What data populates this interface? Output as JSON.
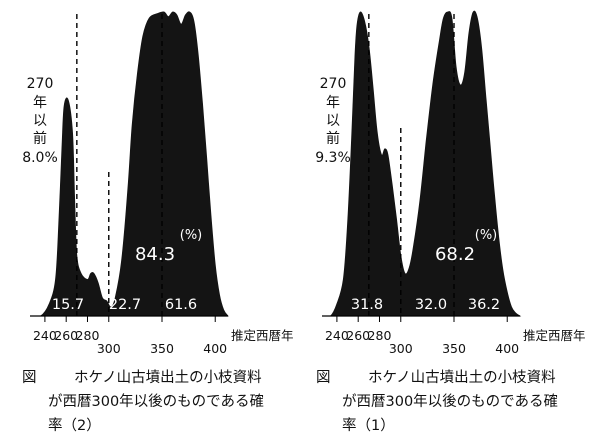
{
  "chart_data": [
    {
      "type": "area",
      "xlabel": "推定西暦年",
      "x_ticks": [
        240,
        260,
        280,
        300,
        350,
        400
      ],
      "xlim": [
        226,
        412
      ],
      "dashed_lines_x": [
        270,
        300,
        350
      ],
      "annotation_lines": [
        "270",
        "年",
        "以",
        "前",
        "8.0%"
      ],
      "unit_label": "(%)",
      "big_label": "84.3",
      "segment_labels": [
        "15.7",
        "22.7",
        "61.6"
      ],
      "density_profile": [
        [
          226,
          0
        ],
        [
          236,
          0
        ],
        [
          244,
          0.04
        ],
        [
          250,
          0.12
        ],
        [
          253,
          0.3
        ],
        [
          256,
          0.55
        ],
        [
          258,
          0.69
        ],
        [
          262,
          0.71
        ],
        [
          266,
          0.6
        ],
        [
          268,
          0.38
        ],
        [
          270,
          0.2
        ],
        [
          274,
          0.14
        ],
        [
          280,
          0.12
        ],
        [
          283,
          0.14
        ],
        [
          286,
          0.14
        ],
        [
          290,
          0.11
        ],
        [
          294,
          0.06
        ],
        [
          298,
          0.05
        ],
        [
          302,
          0.03
        ],
        [
          306,
          0.06
        ],
        [
          312,
          0.18
        ],
        [
          318,
          0.42
        ],
        [
          322,
          0.63
        ],
        [
          327,
          0.8
        ],
        [
          332,
          0.92
        ],
        [
          338,
          0.98
        ],
        [
          346,
          0.995
        ],
        [
          352,
          1.0
        ],
        [
          356,
          0.985
        ],
        [
          360,
          1.0
        ],
        [
          364,
          0.99
        ],
        [
          368,
          0.96
        ],
        [
          372,
          0.99
        ],
        [
          376,
          1.0
        ],
        [
          380,
          0.97
        ],
        [
          384,
          0.86
        ],
        [
          388,
          0.7
        ],
        [
          392,
          0.52
        ],
        [
          396,
          0.33
        ],
        [
          400,
          0.17
        ],
        [
          404,
          0.07
        ],
        [
          408,
          0.02
        ],
        [
          412,
          0
        ]
      ]
    },
    {
      "type": "area",
      "xlabel": "推定西暦年",
      "x_ticks": [
        240,
        260,
        280,
        300,
        350,
        400
      ],
      "xlim": [
        226,
        412
      ],
      "dashed_lines_x": [
        270,
        300,
        350
      ],
      "annotation_lines": [
        "270",
        "年",
        "以",
        "前",
        "9.3%"
      ],
      "unit_label": "(%)",
      "big_label": "68.2",
      "segment_labels": [
        "31.8",
        "32.0",
        "36.2"
      ],
      "density_profile": [
        [
          226,
          0
        ],
        [
          234,
          0
        ],
        [
          240,
          0.04
        ],
        [
          246,
          0.12
        ],
        [
          250,
          0.3
        ],
        [
          254,
          0.6
        ],
        [
          257,
          0.86
        ],
        [
          259,
          0.96
        ],
        [
          262,
          1.0
        ],
        [
          266,
          0.97
        ],
        [
          270,
          0.89
        ],
        [
          274,
          0.75
        ],
        [
          278,
          0.6
        ],
        [
          282,
          0.53
        ],
        [
          285,
          0.55
        ],
        [
          288,
          0.53
        ],
        [
          292,
          0.43
        ],
        [
          296,
          0.32
        ],
        [
          300,
          0.2
        ],
        [
          304,
          0.14
        ],
        [
          308,
          0.16
        ],
        [
          312,
          0.23
        ],
        [
          318,
          0.38
        ],
        [
          324,
          0.58
        ],
        [
          330,
          0.76
        ],
        [
          336,
          0.9
        ],
        [
          340,
          0.98
        ],
        [
          344,
          1.0
        ],
        [
          348,
          0.98
        ],
        [
          352,
          0.82
        ],
        [
          356,
          0.76
        ],
        [
          360,
          0.8
        ],
        [
          364,
          0.93
        ],
        [
          368,
          1.0
        ],
        [
          372,
          0.98
        ],
        [
          376,
          0.88
        ],
        [
          380,
          0.72
        ],
        [
          384,
          0.56
        ],
        [
          388,
          0.4
        ],
        [
          392,
          0.26
        ],
        [
          396,
          0.15
        ],
        [
          400,
          0.08
        ],
        [
          404,
          0.03
        ],
        [
          408,
          0.01
        ],
        [
          412,
          0
        ]
      ]
    }
  ],
  "captions": [
    {
      "label": "図",
      "lines": [
        "ホケノ山古墳出土の小枝資料",
        "が西暦300年以後のものである確",
        "率（2）"
      ]
    },
    {
      "label": "図",
      "lines": [
        "ホケノ山古墳出土の小枝資料",
        "が西暦300年以後のものである確",
        "率（1）"
      ]
    }
  ],
  "colors": {
    "fill": "#141414",
    "axis": "#000000",
    "text": "#111111",
    "inner_text": "#ffffff"
  }
}
